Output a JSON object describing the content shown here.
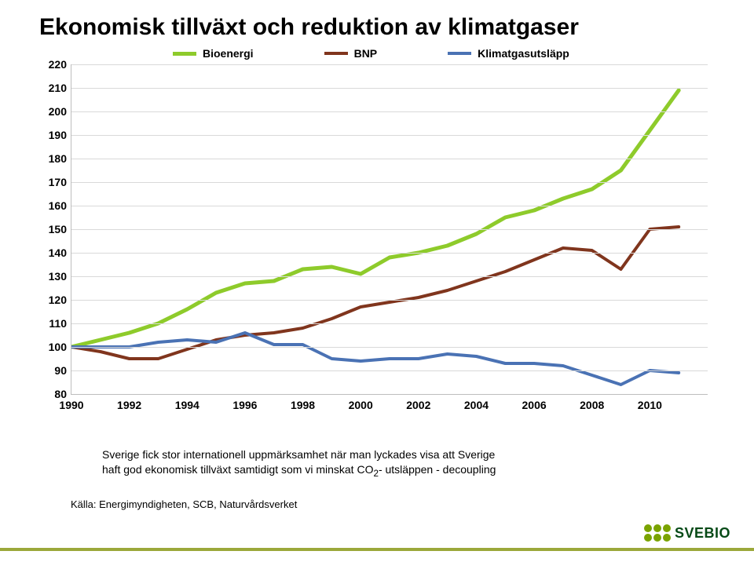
{
  "title": {
    "text": "Ekonomisk tillväxt och reduktion av klimatgaser",
    "fontsize": 30
  },
  "chart": {
    "type": "line",
    "years": [
      1990,
      1991,
      1992,
      1993,
      1994,
      1995,
      1996,
      1997,
      1998,
      1999,
      2000,
      2001,
      2002,
      2003,
      2004,
      2005,
      2006,
      2007,
      2008,
      2009,
      2010,
      2011
    ],
    "series": [
      {
        "name": "Bioenergi",
        "color": "#8ecb2b",
        "width": 5,
        "values": [
          100,
          103,
          106,
          110,
          116,
          123,
          127,
          128,
          133,
          134,
          131,
          138,
          140,
          143,
          148,
          155,
          158,
          163,
          167,
          175,
          192,
          209
        ]
      },
      {
        "name": "BNP",
        "color": "#80351d",
        "width": 4,
        "values": [
          100,
          98,
          95,
          95,
          99,
          103,
          105,
          106,
          108,
          112,
          117,
          119,
          121,
          124,
          128,
          132,
          137,
          142,
          141,
          133,
          150,
          151
        ]
      },
      {
        "name": "Klimatgasutsläpp",
        "color": "#4a72b4",
        "width": 4,
        "values": [
          100,
          100,
          100,
          102,
          103,
          102,
          106,
          101,
          101,
          95,
          94,
          95,
          95,
          97,
          96,
          93,
          93,
          92,
          88,
          84,
          90,
          89
        ]
      }
    ],
    "ylim": [
      80,
      220
    ],
    "ytick_step": 10,
    "xtick_step": 2,
    "xlim": [
      1990,
      2012
    ],
    "tick_fontsize": 14,
    "grid_color": "#d9d9d9",
    "background_color": "#ffffff",
    "legend_fontsize": 14
  },
  "body_text": {
    "line1": "Sverige fick stor internationell uppmärksamhet när man lyckades visa att Sverige",
    "line2_prefix": "haft god ekonomisk tillväxt samtidigt som vi minskat CO",
    "line2_sub": "2",
    "line2_suffix": "- utsläppen - decoupling",
    "fontsize": 14
  },
  "source": {
    "label": "Källa: Energimyndigheten, SCB, Naturvårdsverket",
    "fontsize": 13
  },
  "footer": {
    "url": "www.svebio.se",
    "bar_color": "#9ba83a",
    "logo_text": "SVEBIO",
    "logo_dot_color": "#7aa300",
    "logo_text_color": "#074a17"
  }
}
